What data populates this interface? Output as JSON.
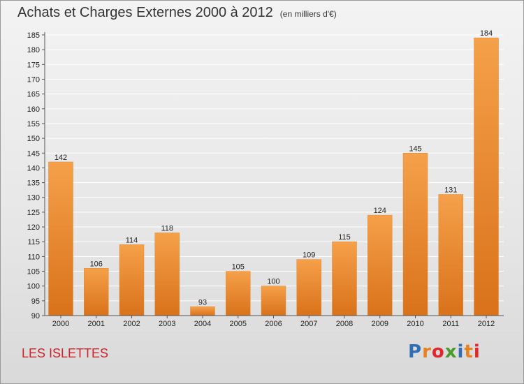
{
  "header": {
    "title": "Achats et Charges Externes 2000 à 2012",
    "subtitle": "(en milliers d'€)"
  },
  "commune": "LES ISLETTES",
  "logo": {
    "text": "Proxiti",
    "letter_colors": [
      "#2f6db5",
      "#e8811f",
      "#e2262a",
      "#4a9a2c",
      "#2f6db5",
      "#e8811f",
      "#e2262a"
    ]
  },
  "chart_data": {
    "type": "bar",
    "categories": [
      "2000",
      "2001",
      "2002",
      "2003",
      "2004",
      "2005",
      "2006",
      "2007",
      "2008",
      "2009",
      "2010",
      "2011",
      "2012"
    ],
    "values": [
      142,
      106,
      114,
      118,
      93,
      105,
      100,
      109,
      115,
      124,
      145,
      131,
      184
    ],
    "title": "Achats et Charges Externes 2000 à 2012",
    "subtitle": "(en milliers d'€)",
    "ylim": [
      90,
      185
    ],
    "ytick_step": 5,
    "grid": true,
    "bar_color_top": "#f5a04a",
    "bar_color_bottom": "#d9721a"
  }
}
